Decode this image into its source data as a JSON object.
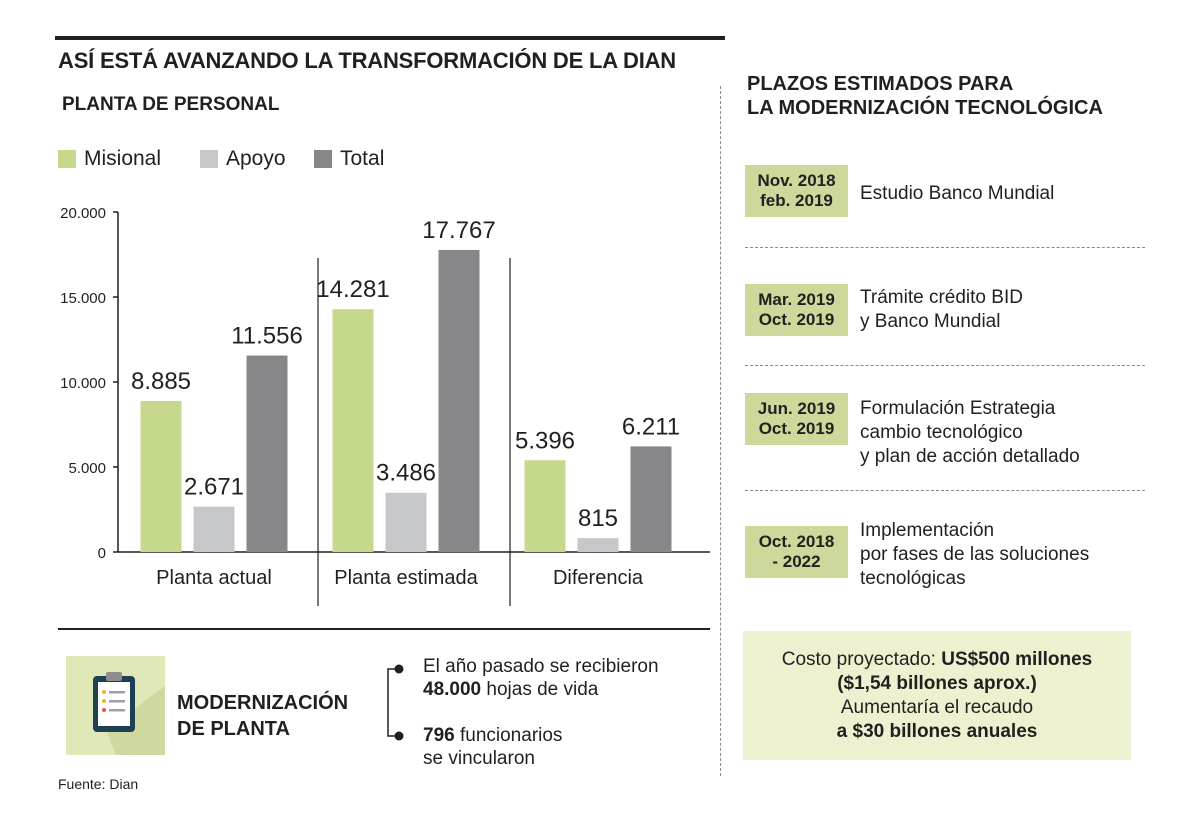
{
  "title": "ASÍ ESTÁ AVANZANDO LA TRANSFORMACIÓN DE LA DIAN",
  "subtitle": "PLANTA DE PERSONAL",
  "legend": [
    {
      "label": "Misional",
      "color": "#c5d88c"
    },
    {
      "label": "Apoyo",
      "color": "#c6c7cb"
    },
    {
      "label": "Total",
      "color": "#87878a"
    }
  ],
  "chart_data": {
    "type": "bar",
    "title": "PLANTA DE PERSONAL",
    "categories": [
      "Planta actual",
      "Planta estimada",
      "Diferencia"
    ],
    "series": [
      {
        "name": "Misional",
        "values": [
          8885,
          14281,
          5396
        ],
        "labels": [
          "8.885",
          "14.281",
          "5.396"
        ],
        "color": "#c5d88c"
      },
      {
        "name": "Apoyo",
        "values": [
          2671,
          3486,
          815
        ],
        "labels": [
          "2.671",
          "3.486",
          "815"
        ],
        "color": "#c6c7cb"
      },
      {
        "name": "Total",
        "values": [
          11556,
          17767,
          6211
        ],
        "labels": [
          "11.556",
          "17.767",
          "6.211"
        ],
        "color": "#87878a"
      }
    ],
    "yticks": [
      {
        "value": 0,
        "label": "0"
      },
      {
        "value": 5000,
        "label": "5.000"
      },
      {
        "value": 10000,
        "label": "10.000"
      },
      {
        "value": 15000,
        "label": "15.000"
      },
      {
        "value": 20000,
        "label": "20.000"
      }
    ],
    "ylim": [
      0,
      20000
    ],
    "xlabel": "",
    "ylabel": "",
    "grid": false
  },
  "timeline": {
    "title_line1": "PLAZOS ESTIMADOS PARA",
    "title_line2": "LA MODERNIZACIÓN TECNOLÓGICA",
    "items": [
      {
        "date1": "Nov. 2018",
        "date2": "feb. 2019",
        "text": [
          "Estudio Banco Mundial"
        ]
      },
      {
        "date1": "Mar. 2019",
        "date2": "Oct. 2019",
        "text": [
          "Trámite crédito BID",
          "y Banco Mundial"
        ]
      },
      {
        "date1": "Jun. 2019",
        "date2": "Oct. 2019",
        "text": [
          "Formulación Estrategia",
          "cambio tecnológico",
          "y plan de acción detallado"
        ]
      },
      {
        "date1": "Oct. 2018",
        "date2": "- 2022",
        "text": [
          "Implementación",
          "por fases de las soluciones",
          "tecnológicas"
        ]
      }
    ]
  },
  "cost": {
    "prefix": "Costo proyectado: ",
    "amount": "US$500 millones",
    "line2": "($1,54 billones aprox.)",
    "line3": "Aumentaría el recaudo",
    "line4": "a $30 billones anuales"
  },
  "modernizacion": {
    "title_line1": "MODERNIZACIÓN",
    "title_line2": "DE PLANTA",
    "fact1_line1": "El año pasado se recibieron",
    "fact1_bold": "48.000",
    "fact1_rest": " hojas de vida",
    "fact2_bold": "796",
    "fact2_rest": " funcionarios",
    "fact2_line2": "se vincularon"
  },
  "source": "Fuente: Dian"
}
